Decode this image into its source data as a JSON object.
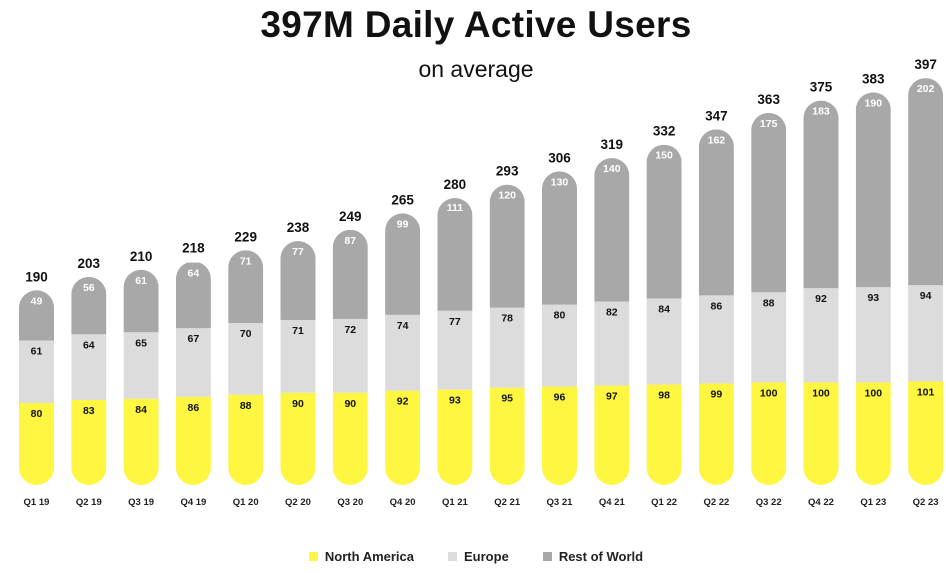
{
  "chart_data": {
    "type": "bar",
    "stacked": true,
    "title": "397M Daily Active Users",
    "subtitle": "on average",
    "categories": [
      "Q1 19",
      "Q2 19",
      "Q3 19",
      "Q4 19",
      "Q1 20",
      "Q2 20",
      "Q3 20",
      "Q4 20",
      "Q1 21",
      "Q2 21",
      "Q3 21",
      "Q4 21",
      "Q1 22",
      "Q2 22",
      "Q3 22",
      "Q4 22",
      "Q1 23",
      "Q2 23"
    ],
    "series": [
      {
        "name": "North America",
        "color": "#fef640",
        "values": [
          80,
          83,
          84,
          86,
          88,
          90,
          90,
          92,
          93,
          95,
          96,
          97,
          98,
          99,
          100,
          100,
          100,
          101
        ]
      },
      {
        "name": "Europe",
        "color": "#dcdcdc",
        "values": [
          61,
          64,
          65,
          67,
          70,
          71,
          72,
          74,
          77,
          78,
          80,
          82,
          84,
          86,
          88,
          92,
          93,
          94
        ]
      },
      {
        "name": "Rest of World",
        "color": "#a8a8a8",
        "values": [
          49,
          56,
          61,
          64,
          71,
          77,
          87,
          99,
          111,
          120,
          130,
          140,
          150,
          162,
          175,
          183,
          190,
          202
        ]
      }
    ],
    "totals": [
      190,
      203,
      210,
      218,
      229,
      238,
      249,
      265,
      280,
      293,
      306,
      319,
      332,
      347,
      363,
      375,
      383,
      397
    ],
    "legend_position": "bottom",
    "grid": false
  }
}
